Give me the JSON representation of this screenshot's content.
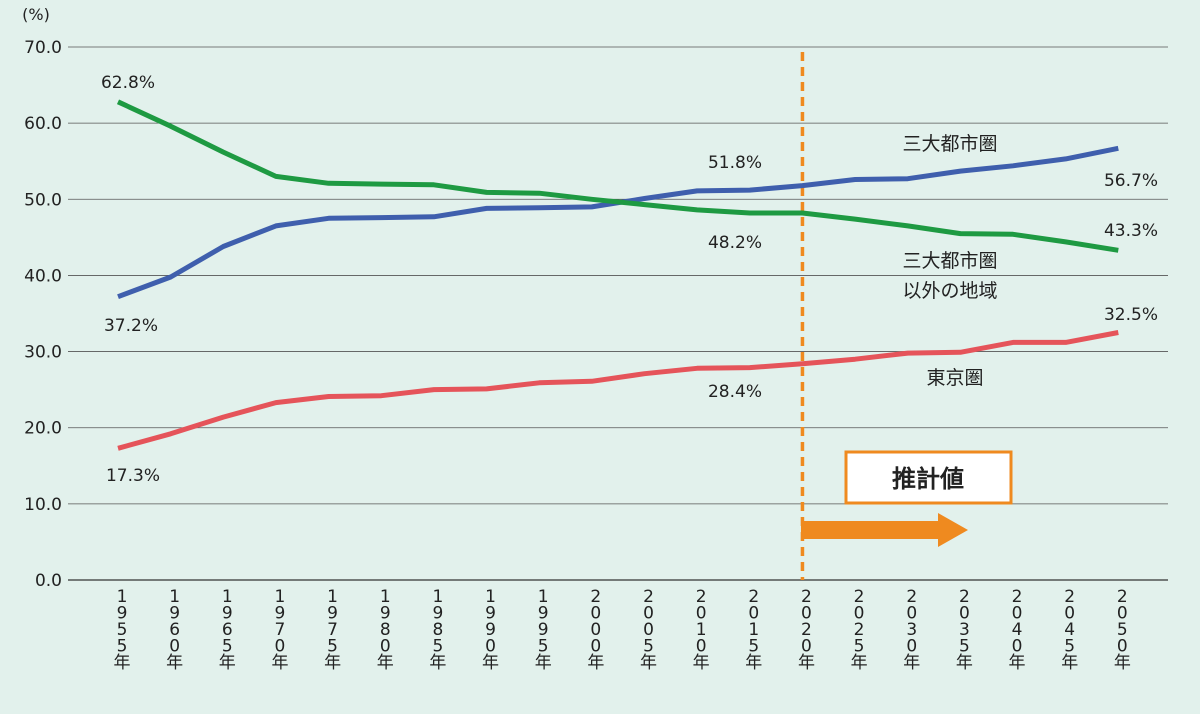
{
  "chart_data": {
    "type": "line",
    "y_unit": "(%)",
    "ylim": [
      0,
      70
    ],
    "y_ticks": [
      "0.0",
      "10.0",
      "20.0",
      "30.0",
      "40.0",
      "50.0",
      "60.0",
      "70.0"
    ],
    "grid": true,
    "categories": [
      "1955年",
      "1960年",
      "1965年",
      "1970年",
      "1975年",
      "1980年",
      "1985年",
      "1990年",
      "1995年",
      "2000年",
      "2005年",
      "2010年",
      "2015年",
      "2020年",
      "2025年",
      "2030年",
      "2035年",
      "2040年",
      "2045年",
      "2050年"
    ],
    "series": [
      {
        "name": "三大都市圏",
        "color": "#3f5fad",
        "values": [
          37.2,
          39.8,
          43.8,
          46.5,
          47.5,
          47.6,
          47.7,
          48.8,
          48.9,
          49.0,
          50.1,
          51.1,
          51.2,
          51.8,
          52.6,
          52.7,
          53.7,
          54.4,
          55.3,
          56.7
        ]
      },
      {
        "name": "三大都市圏\n以外の地域",
        "color": "#1e9a42",
        "values": [
          62.8,
          59.6,
          56.2,
          53.0,
          52.1,
          52.0,
          51.9,
          50.9,
          50.8,
          50.0,
          49.3,
          48.6,
          48.2,
          48.2,
          47.4,
          46.5,
          45.5,
          45.4,
          44.4,
          43.3
        ]
      },
      {
        "name": "東京圏",
        "color": "#e5545a",
        "values": [
          17.3,
          19.2,
          21.4,
          23.3,
          24.1,
          24.2,
          25.0,
          25.1,
          25.9,
          26.1,
          27.1,
          27.8,
          27.9,
          28.4,
          29.0,
          29.8,
          29.9,
          31.2,
          31.2,
          32.5
        ]
      }
    ],
    "data_labels": [
      "62.8%",
      "37.2%",
      "17.3%",
      "51.8%",
      "48.2%",
      "28.4%",
      "56.7%",
      "43.3%",
      "32.5%"
    ],
    "series_labels": [
      "三大都市圏",
      "三大都市圏",
      "以外の地域",
      "東京圏"
    ],
    "projection": {
      "start_category": "2020年",
      "label": "推計値",
      "line_color": "#ef8a1f"
    }
  }
}
